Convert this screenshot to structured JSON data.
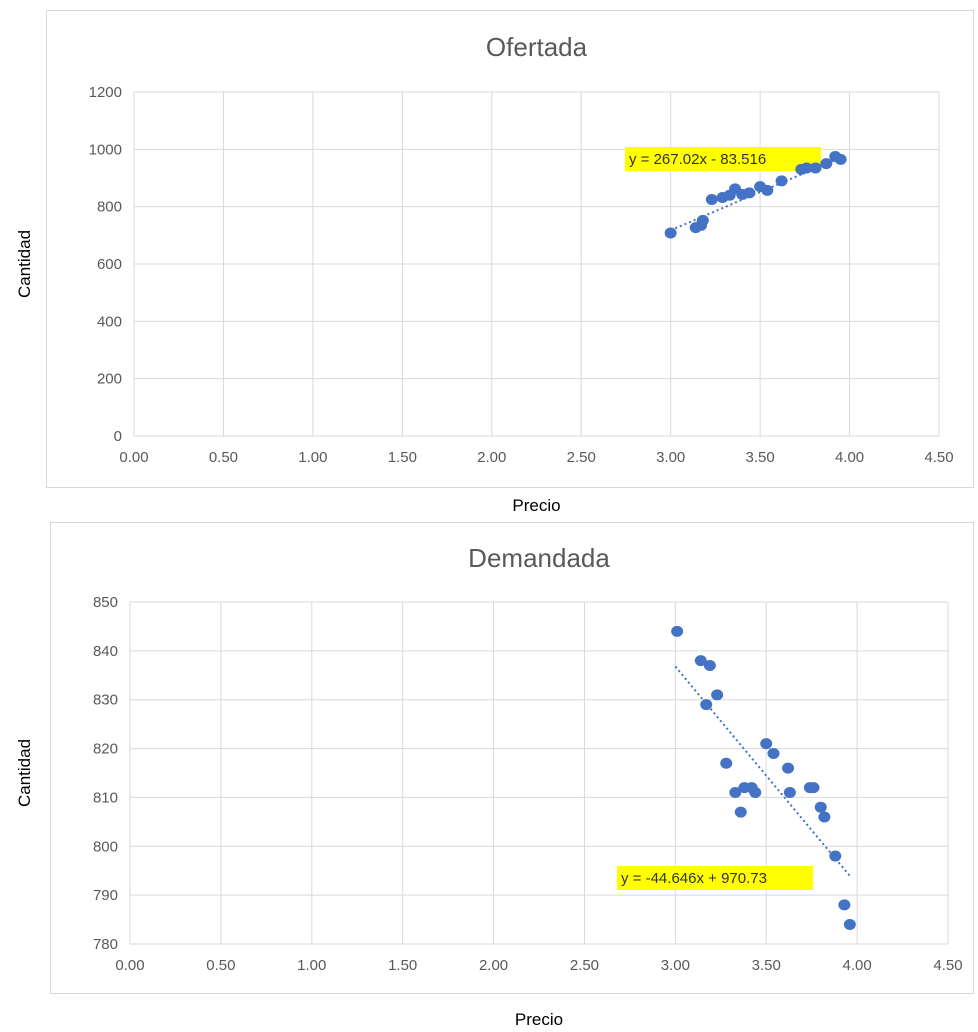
{
  "chart_data": [
    {
      "type": "scatter",
      "title": "Ofertada",
      "xlabel": "Precio",
      "ylabel": "Cantidad",
      "xlim": [
        0,
        4.5
      ],
      "ylim": [
        0,
        1200
      ],
      "x_ticks": [
        "0.00",
        "0.50",
        "1.00",
        "1.50",
        "2.00",
        "2.50",
        "3.00",
        "3.50",
        "4.00",
        "4.50"
      ],
      "y_ticks": [
        "0",
        "200",
        "400",
        "600",
        "800",
        "1000",
        "1200"
      ],
      "grid": true,
      "point_color": "#4472c4",
      "points": [
        {
          "x": 3.0,
          "y": 708
        },
        {
          "x": 3.14,
          "y": 727
        },
        {
          "x": 3.17,
          "y": 735
        },
        {
          "x": 3.18,
          "y": 752
        },
        {
          "x": 3.23,
          "y": 825
        },
        {
          "x": 3.29,
          "y": 832
        },
        {
          "x": 3.33,
          "y": 840
        },
        {
          "x": 3.36,
          "y": 862
        },
        {
          "x": 3.4,
          "y": 843
        },
        {
          "x": 3.44,
          "y": 848
        },
        {
          "x": 3.5,
          "y": 870
        },
        {
          "x": 3.54,
          "y": 857
        },
        {
          "x": 3.62,
          "y": 890
        },
        {
          "x": 3.73,
          "y": 930
        },
        {
          "x": 3.76,
          "y": 935
        },
        {
          "x": 3.81,
          "y": 935
        },
        {
          "x": 3.87,
          "y": 950
        },
        {
          "x": 3.92,
          "y": 975
        },
        {
          "x": 3.95,
          "y": 965
        }
      ],
      "trendline": {
        "slope": 267.02,
        "intercept": -83.516,
        "x_range": [
          3.0,
          3.95
        ]
      },
      "equation_label": "y = 267.02x - 83.516",
      "highlight_color": "#ffff00"
    },
    {
      "type": "scatter",
      "title": "Demandada",
      "xlabel": "Precio",
      "ylabel": "Cantidad",
      "xlim": [
        0,
        4.5
      ],
      "ylim": [
        780,
        850
      ],
      "x_ticks": [
        "0.00",
        "0.50",
        "1.00",
        "1.50",
        "2.00",
        "2.50",
        "3.00",
        "3.50",
        "4.00",
        "4.50"
      ],
      "y_ticks": [
        "780",
        "790",
        "800",
        "810",
        "820",
        "830",
        "840",
        "850"
      ],
      "grid": true,
      "point_color": "#4472c4",
      "points": [
        {
          "x": 3.01,
          "y": 844
        },
        {
          "x": 3.14,
          "y": 838
        },
        {
          "x": 3.19,
          "y": 837
        },
        {
          "x": 3.17,
          "y": 829
        },
        {
          "x": 3.23,
          "y": 831
        },
        {
          "x": 3.28,
          "y": 817
        },
        {
          "x": 3.33,
          "y": 811
        },
        {
          "x": 3.36,
          "y": 807
        },
        {
          "x": 3.38,
          "y": 812
        },
        {
          "x": 3.42,
          "y": 812
        },
        {
          "x": 3.44,
          "y": 811
        },
        {
          "x": 3.5,
          "y": 821
        },
        {
          "x": 3.54,
          "y": 819
        },
        {
          "x": 3.62,
          "y": 816
        },
        {
          "x": 3.63,
          "y": 811
        },
        {
          "x": 3.74,
          "y": 812
        },
        {
          "x": 3.76,
          "y": 812
        },
        {
          "x": 3.8,
          "y": 808
        },
        {
          "x": 3.82,
          "y": 806
        },
        {
          "x": 3.88,
          "y": 798
        },
        {
          "x": 3.93,
          "y": 788
        },
        {
          "x": 3.96,
          "y": 784
        }
      ],
      "trendline": {
        "slope": -44.646,
        "intercept": 970.73,
        "x_range": [
          3.0,
          3.96
        ]
      },
      "equation_label": "y = -44.646x + 970.73",
      "highlight_color": "#ffff00"
    }
  ]
}
